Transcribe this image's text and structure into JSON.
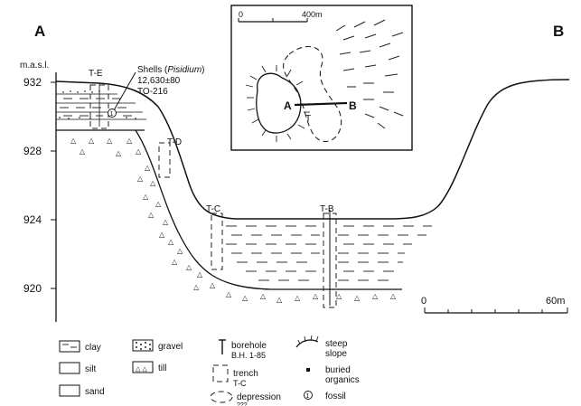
{
  "section": {
    "end_left": "A",
    "end_right": "B",
    "y_axis_unit": "m.a.s.l.",
    "y_ticks": [
      "932",
      "928",
      "924",
      "920"
    ]
  },
  "trenches": {
    "te": "T-E",
    "td": "T-D",
    "tc": "T-C",
    "tb": "T-B"
  },
  "annotation": {
    "line1_prefix": "Shells (",
    "line1_taxon": "Pisidium",
    "line1_suffix": ")",
    "line2": "12,630±80",
    "line3": "TO-216",
    "marker": "1"
  },
  "scalebar": {
    "start": "0",
    "end": "60m"
  },
  "inset": {
    "scale_start": "0",
    "scale_end": "400m",
    "point_a": "A",
    "point_b": "B",
    "marker": "T"
  },
  "legend": {
    "clay": "clay",
    "silt": "silt",
    "sand": "sand",
    "gravel": "gravel",
    "till": "till",
    "borehole_line1": "borehole",
    "borehole_line2": "B.H. 1-85",
    "trench_line1": "trench",
    "trench_line2": "T-C",
    "depression_line1": "depression",
    "depression_line2": "???",
    "steep_line1": "steep",
    "steep_line2": "slope",
    "buried_line1": "buried",
    "buried_line2": "organics",
    "fossil": "fossil",
    "fossil_marker": "1"
  }
}
